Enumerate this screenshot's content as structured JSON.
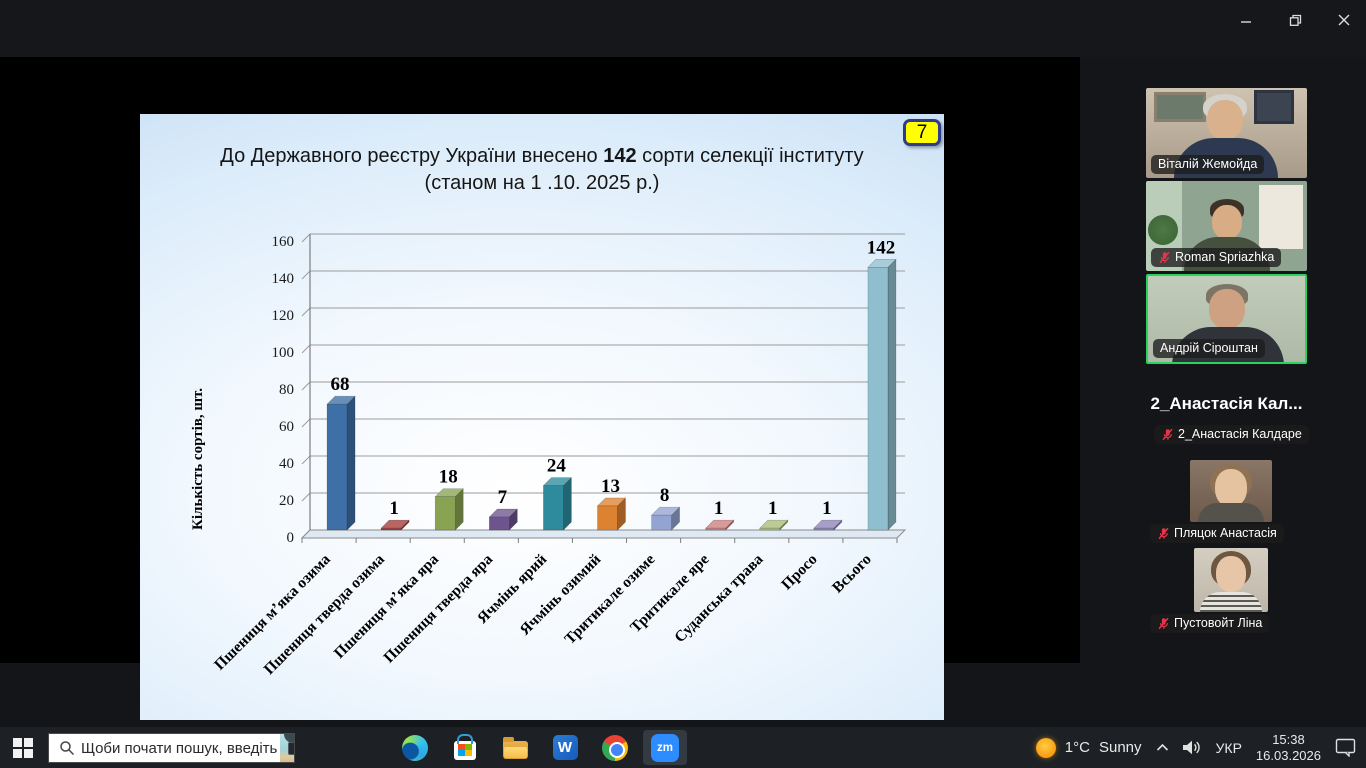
{
  "slide": {
    "number": "7",
    "title_prefix": "До Державного реєстру України внесено ",
    "title_bold": "142",
    "title_suffix": " сорти селекції інституту",
    "title_line2": "(станом на 1 .10. 2025 р.)"
  },
  "chart_data": {
    "type": "bar",
    "style": "3d",
    "title": "До Державного реєстру України внесено 142 сорти селекції інституту (станом на 1 .10. 2025 р.)",
    "categories": [
      "Пшениця м’яка озима",
      "Пшениця тверда озима",
      "Пшениця м’яка яра",
      "Пшениця тверда яра",
      "Ячмінь ярий",
      "Ячмінь озимий",
      "Тритикале озиме",
      "Тритикале яре",
      "Суданська трава",
      "Просо",
      "Всього"
    ],
    "values": [
      68,
      1,
      18,
      7,
      24,
      13,
      8,
      1,
      1,
      1,
      142
    ],
    "bar_colors": [
      "#3e6fa7",
      "#a53a38",
      "#88a352",
      "#6e548e",
      "#2e8b9e",
      "#dd8231",
      "#93a4d2",
      "#ce7e80",
      "#a9bc77",
      "#8e84b8",
      "#8fbfce"
    ],
    "xlabel": "",
    "ylabel": "Кількість сортів, шт.",
    "ylim": [
      0,
      160
    ],
    "ytick_step": 20,
    "grid": true,
    "legend": false
  },
  "participants": [
    {
      "name": "Віталій Жемойда",
      "muted": false,
      "video": true,
      "active": false
    },
    {
      "name": "Roman Spriazhka",
      "muted": true,
      "video": true,
      "active": false
    },
    {
      "name": "Андрій Сіроштан",
      "muted": false,
      "video": true,
      "active": true
    },
    {
      "name": "2_Анастасія Калдаре",
      "display_name": "2_Анастасія Кал...",
      "muted": true,
      "video": false,
      "active": false
    },
    {
      "name": "Пляцок Анастасія",
      "muted": true,
      "video": true,
      "active": false
    },
    {
      "name": "Пустовойт Ліна",
      "muted": true,
      "video": true,
      "active": false
    }
  ],
  "taskbar": {
    "search_placeholder": "Щоби почати пошук, введіть",
    "apps": [
      "edge",
      "store",
      "file-explorer",
      "word",
      "chrome",
      "zoom"
    ],
    "active_app": "zoom",
    "icons": {
      "word_glyph": "W",
      "zoom_glyph": "zm"
    },
    "tray": {
      "weather_temp": "1°C",
      "weather_condition": "Sunny",
      "language": "УКР",
      "time": "15:38",
      "date": "16.03.2026"
    }
  },
  "colors": {
    "active_speaker_border": "#2ad35f",
    "muted_mic": "#e8344a",
    "slide_badge_bg": "#ffff00",
    "slide_badge_border": "#2e3c8c",
    "zoom_brand": "#2d8cff",
    "share_background": "#000000",
    "app_background": "#15171b",
    "taskbar_background": "#1d2125"
  }
}
